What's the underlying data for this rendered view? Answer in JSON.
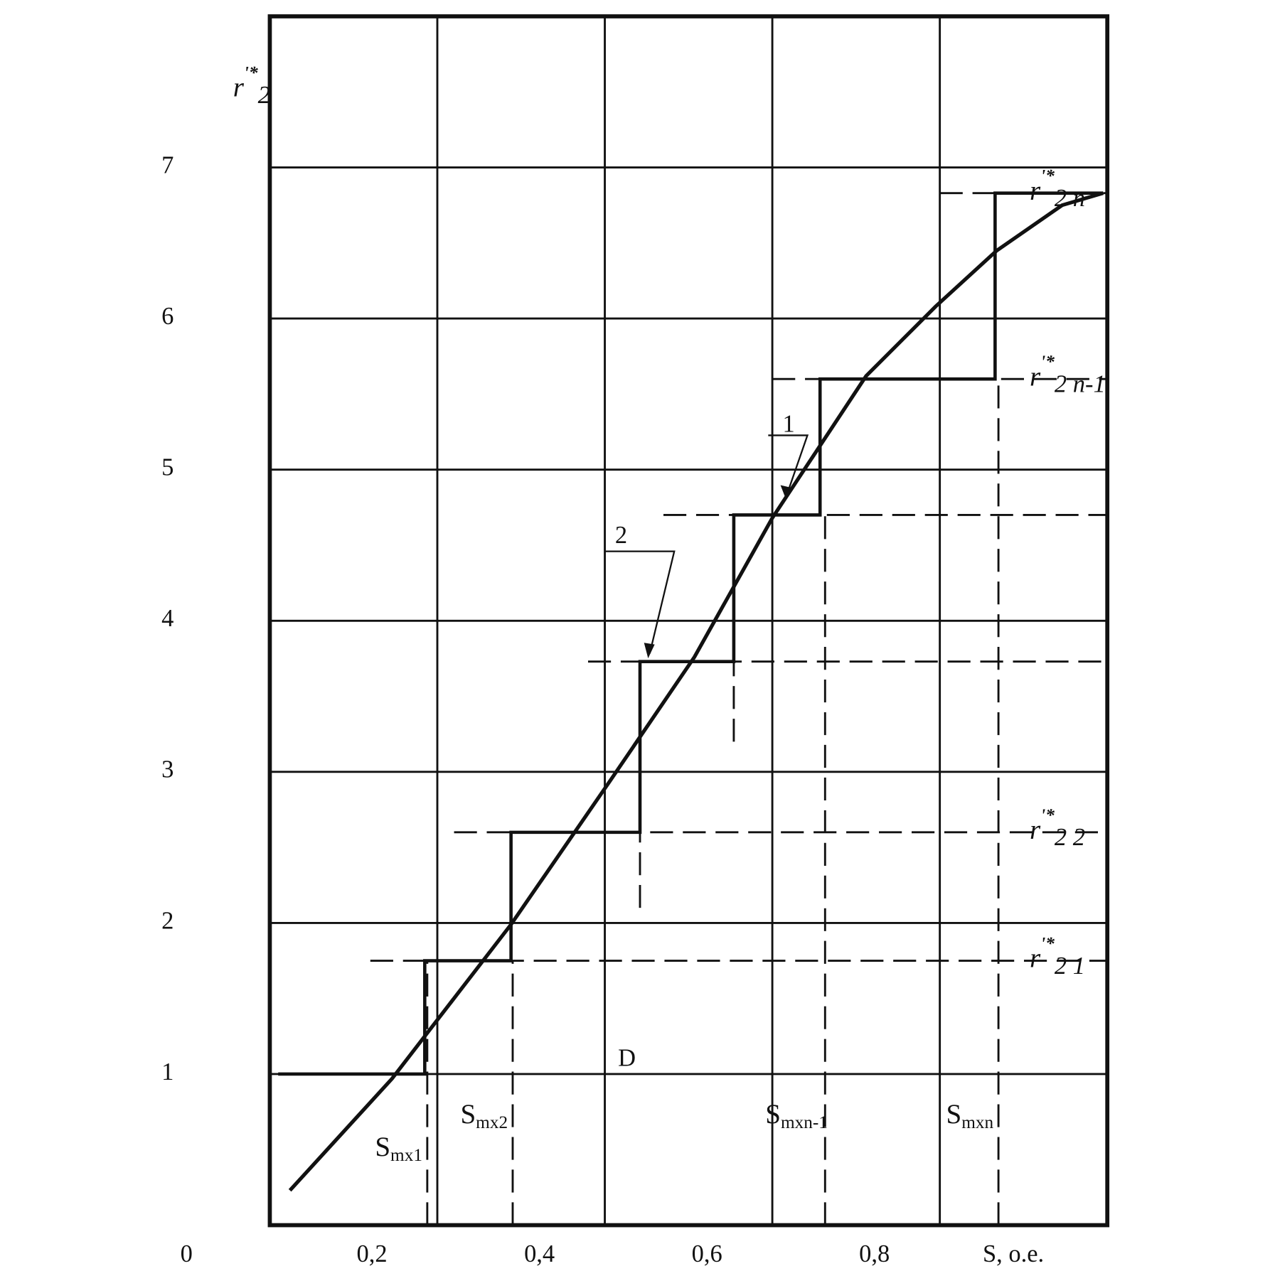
{
  "chart_data": {
    "type": "line",
    "ylabel": {
      "base": "r",
      "sup": "'*",
      "sub": "2"
    },
    "xlabel": "S, o.e.",
    "xlim": [
      0,
      1.0
    ],
    "ylim": [
      0,
      8
    ],
    "xticks": [
      {
        "value": 0.2,
        "label": "0,2"
      },
      {
        "value": 0.4,
        "label": "0,4"
      },
      {
        "value": 0.6,
        "label": "0,6"
      },
      {
        "value": 0.8,
        "label": "0,8"
      }
    ],
    "yticks": [
      0,
      1,
      2,
      3,
      4,
      5,
      6,
      7
    ],
    "grid": true,
    "series": [
      {
        "color": "#111111",
        "x": [
          0.024,
          0.146,
          0.288,
          0.405,
          0.507,
          0.6,
          0.712,
          0.795,
          0.868,
          0.946,
          0.995
        ],
        "values": [
          0.23,
          0.97,
          1.99,
          2.93,
          3.76,
          4.68,
          5.62,
          6.08,
          6.45,
          6.75,
          6.83
        ]
      },
      {
        "color": "#111111",
        "x": [
          0.01,
          0.185,
          0.185,
          0.288,
          0.288,
          0.442,
          0.442,
          0.554,
          0.554,
          0.657,
          0.657,
          0.866,
          0.866,
          0.995
        ],
        "values": [
          1,
          1,
          1.75,
          1.75,
          2.6,
          2.6,
          3.73,
          3.73,
          4.7,
          4.7,
          5.6,
          5.6,
          6.83,
          6.83
        ]
      }
    ],
    "hlines": [
      {
        "y": 1.75,
        "x_from": 0.12,
        "label": {
          "base": "r",
          "sup": "'*",
          "sub": "2 1"
        }
      },
      {
        "y": 2.6,
        "x_from": 0.22,
        "label": {
          "base": "r",
          "sup": "'*",
          "sub": "2 2"
        }
      },
      {
        "y": 3.73,
        "x_from": 0.38
      },
      {
        "y": 4.7,
        "x_from": 0.47
      },
      {
        "y": 5.6,
        "x_from": 0.6,
        "label": {
          "base": "r",
          "sup": "'*",
          "sub": "2 n-1"
        }
      },
      {
        "y": 6.83,
        "x_from": 0.8,
        "label": {
          "base": "r",
          "sup": "'*",
          "sub": "2 n"
        }
      }
    ],
    "vlines": [
      {
        "x": 0.188,
        "y_from": 0,
        "y_to": 1.75,
        "label": {
          "base": "S",
          "sub": "mx1"
        }
      },
      {
        "x": 0.29,
        "y_from": 0,
        "y_to": 1.75,
        "label": {
          "base": "S",
          "sub": "mx2"
        }
      },
      {
        "x": 0.442,
        "y_from": 2.1,
        "y_to": 2.6
      },
      {
        "x": 0.554,
        "y_from": 3.2,
        "y_to": 3.73
      },
      {
        "x": 0.663,
        "y_from": 0,
        "y_to": 4.7,
        "label": {
          "base": "S",
          "sub": "mxn-1"
        }
      },
      {
        "x": 0.87,
        "y_from": 0,
        "y_to": 5.6,
        "label": {
          "base": "S",
          "sub": "mxn"
        }
      }
    ],
    "annotations": [
      "1",
      "2",
      "D"
    ]
  }
}
